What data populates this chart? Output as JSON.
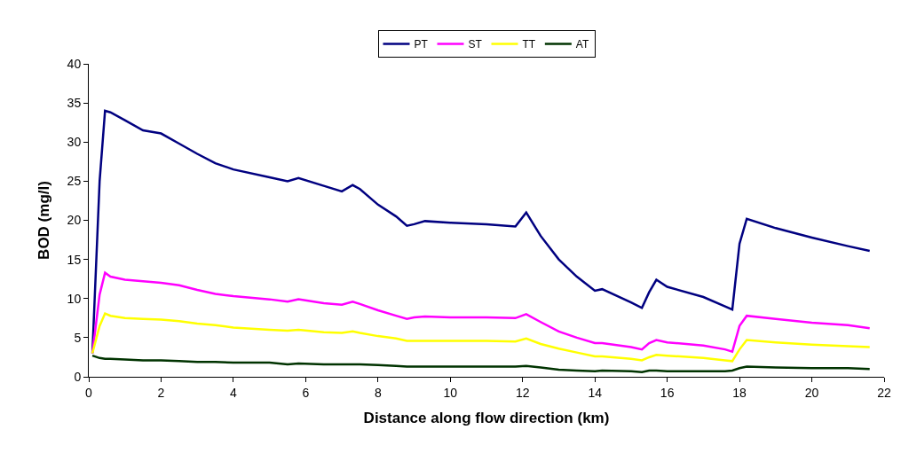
{
  "chart_data": {
    "type": "line",
    "xlabel": "Distance along flow direction (km)",
    "ylabel": "BOD (mg/l)",
    "x": [
      0.1,
      0.3,
      0.45,
      0.6,
      1.0,
      1.5,
      2.0,
      2.5,
      3.0,
      3.5,
      4.0,
      5.0,
      5.5,
      5.8,
      6.5,
      7.0,
      7.3,
      7.5,
      8.0,
      8.5,
      8.8,
      9.0,
      9.3,
      10,
      11,
      11.8,
      12.1,
      12.5,
      13,
      13.5,
      14,
      14.2,
      15,
      15.3,
      15.5,
      15.7,
      16,
      17,
      17.6,
      17.8,
      18.0,
      18.2,
      19,
      20,
      21,
      21.6
    ],
    "series": [
      {
        "name": "PT",
        "color": "#000080",
        "values": [
          3,
          25,
          34,
          33.8,
          32.8,
          31.5,
          31.1,
          29.8,
          28.5,
          27.3,
          26.5,
          25.5,
          25.0,
          25.4,
          24.4,
          23.7,
          24.5,
          24.0,
          22.0,
          20.5,
          19.3,
          19.5,
          19.9,
          19.7,
          19.5,
          19.2,
          21.0,
          18.0,
          15.0,
          12.8,
          11.0,
          11.2,
          9.5,
          8.8,
          10.8,
          12.4,
          11.5,
          10.2,
          9.0,
          8.6,
          17,
          20.2,
          19,
          17.8,
          16.7,
          16.1
        ]
      },
      {
        "name": "ST",
        "color": "#ff00ff",
        "values": [
          3,
          10.5,
          13.3,
          12.8,
          12.4,
          12.2,
          12.0,
          11.7,
          11.1,
          10.6,
          10.3,
          9.9,
          9.6,
          9.9,
          9.4,
          9.2,
          9.6,
          9.3,
          8.5,
          7.8,
          7.4,
          7.6,
          7.7,
          7.6,
          7.6,
          7.5,
          8.0,
          7.0,
          5.8,
          5.0,
          4.3,
          4.3,
          3.8,
          3.5,
          4.3,
          4.7,
          4.4,
          4.0,
          3.5,
          3.2,
          6.5,
          7.8,
          7.4,
          6.9,
          6.6,
          6.2
        ]
      },
      {
        "name": "TT",
        "color": "#ffff00",
        "values": [
          3,
          6.5,
          8.1,
          7.8,
          7.5,
          7.4,
          7.3,
          7.1,
          6.8,
          6.6,
          6.3,
          6.0,
          5.9,
          6.0,
          5.7,
          5.6,
          5.8,
          5.6,
          5.2,
          4.9,
          4.6,
          4.6,
          4.6,
          4.6,
          4.6,
          4.5,
          4.9,
          4.2,
          3.6,
          3.1,
          2.6,
          2.6,
          2.3,
          2.1,
          2.5,
          2.8,
          2.7,
          2.4,
          2.1,
          2.0,
          3.5,
          4.7,
          4.4,
          4.1,
          3.9,
          3.8
        ]
      },
      {
        "name": "AT",
        "color": "#003300",
        "values": [
          2.7,
          2.4,
          2.3,
          2.3,
          2.2,
          2.1,
          2.1,
          2.0,
          1.9,
          1.9,
          1.8,
          1.8,
          1.6,
          1.7,
          1.6,
          1.6,
          1.6,
          1.6,
          1.5,
          1.4,
          1.3,
          1.3,
          1.3,
          1.3,
          1.3,
          1.3,
          1.4,
          1.2,
          0.9,
          0.8,
          0.7,
          0.8,
          0.7,
          0.6,
          0.8,
          0.8,
          0.7,
          0.7,
          0.7,
          0.8,
          1.1,
          1.3,
          1.2,
          1.1,
          1.1,
          1.0
        ]
      }
    ],
    "xlim": [
      0,
      22
    ],
    "xticks": [
      0,
      2,
      4,
      6,
      8,
      10,
      12,
      14,
      16,
      18,
      20,
      22
    ],
    "ylim": [
      0,
      40
    ],
    "yticks": [
      0,
      5,
      10,
      15,
      20,
      25,
      30,
      35,
      40
    ],
    "legend": "top",
    "marker": "none",
    "line_style": "solid"
  }
}
